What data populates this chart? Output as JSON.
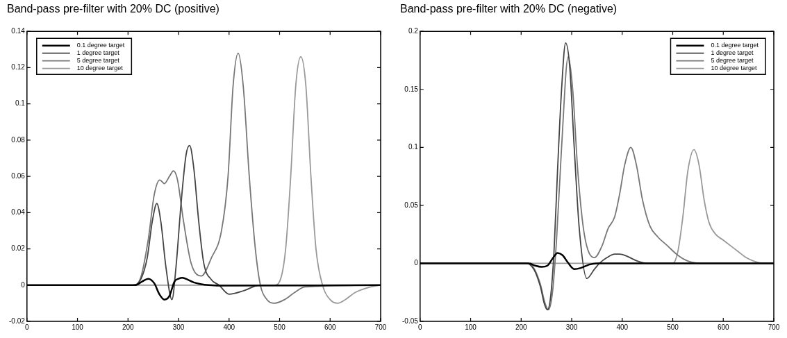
{
  "chart_data": [
    {
      "type": "line",
      "title": "Band-pass pre-filter with 20% DC (positive)",
      "xlim": [
        0,
        700
      ],
      "xticks": [
        0,
        100,
        200,
        300,
        400,
        500,
        600,
        700
      ],
      "ylim": [
        -0.02,
        0.14
      ],
      "yticks": [
        -0.02,
        0,
        0.02,
        0.04,
        0.06,
        0.08,
        0.1,
        0.12,
        0.14
      ],
      "legend": "top left",
      "grid": false,
      "marker": "none",
      "series": [
        {
          "name": "0.1 degree target",
          "color": "#000000",
          "x": [
            0,
            200,
            215,
            228,
            240,
            252,
            262,
            272,
            282,
            292,
            300,
            308,
            318,
            330,
            345,
            360,
            380,
            700
          ],
          "values": [
            0,
            0,
            0,
            0.002,
            0.0035,
            0.001,
            -0.005,
            -0.008,
            -0.006,
            0.002,
            0.0035,
            0.004,
            0.003,
            0.0015,
            0.0005,
            0,
            -0.0003,
            0
          ]
        },
        {
          "name": "1 degree target",
          "color": "#444444",
          "x": [
            0,
            210,
            225,
            238,
            248,
            257,
            265,
            275,
            287,
            295,
            305,
            315,
            322,
            330,
            340,
            350,
            365,
            380,
            400,
            430,
            460,
            700
          ],
          "values": [
            0,
            0,
            0.003,
            0.015,
            0.035,
            0.045,
            0.035,
            0.01,
            -0.008,
            0.01,
            0.045,
            0.072,
            0.077,
            0.065,
            0.035,
            0.012,
            0.003,
            0,
            -0.005,
            -0.003,
            0,
            0
          ]
        },
        {
          "name": "5 degree target",
          "color": "#777777",
          "x": [
            0,
            210,
            225,
            240,
            252,
            263,
            272,
            282,
            290,
            298,
            310,
            325,
            345,
            365,
            385,
            398,
            408,
            418,
            428,
            440,
            452,
            462,
            475,
            490,
            510,
            530,
            550,
            700
          ],
          "values": [
            0,
            0,
            0.004,
            0.025,
            0.05,
            0.058,
            0.056,
            0.06,
            0.063,
            0.058,
            0.035,
            0.012,
            0.005,
            0.015,
            0.03,
            0.06,
            0.11,
            0.128,
            0.11,
            0.06,
            0.02,
            0,
            -0.008,
            -0.01,
            -0.008,
            -0.004,
            -0.001,
            0
          ]
        },
        {
          "name": "10 degree target",
          "color": "#999999",
          "x": [
            0,
            490,
            500,
            512,
            522,
            532,
            542,
            552,
            562,
            572,
            585,
            600,
            615,
            630,
            650,
            680,
            700
          ],
          "values": [
            0,
            0,
            0.002,
            0.02,
            0.06,
            0.11,
            0.126,
            0.11,
            0.06,
            0.02,
            0,
            -0.008,
            -0.01,
            -0.008,
            -0.004,
            -0.001,
            0
          ]
        }
      ]
    },
    {
      "type": "line",
      "title": "Band-pass pre-filter with 20% DC (negative)",
      "xlim": [
        0,
        700
      ],
      "xticks": [
        0,
        100,
        200,
        300,
        400,
        500,
        600,
        700
      ],
      "ylim": [
        -0.05,
        0.2
      ],
      "yticks": [
        -0.05,
        0,
        0.05,
        0.1,
        0.15,
        0.2
      ],
      "legend": "top right",
      "grid": false,
      "marker": "none",
      "series": [
        {
          "name": "0.1 degree target",
          "color": "#000000",
          "x": [
            0,
            215,
            228,
            240,
            252,
            262,
            272,
            282,
            292,
            305,
            318,
            335,
            350,
            700
          ],
          "values": [
            0,
            0,
            -0.002,
            -0.003,
            -0.002,
            0.004,
            0.009,
            0.007,
            0.001,
            -0.005,
            -0.004,
            -0.001,
            0,
            0
          ]
        },
        {
          "name": "1 degree target",
          "color": "#444444",
          "x": [
            0,
            210,
            225,
            238,
            246,
            252,
            258,
            265,
            272,
            280,
            288,
            296,
            305,
            315,
            330,
            345,
            355,
            370,
            385,
            395,
            410,
            430,
            450,
            700
          ],
          "values": [
            0,
            0,
            -0.005,
            -0.02,
            -0.035,
            -0.04,
            -0.03,
            0.01,
            0.08,
            0.15,
            0.19,
            0.17,
            0.1,
            0.03,
            -0.013,
            -0.005,
            0,
            0.005,
            0.008,
            0.008,
            0.006,
            0.002,
            0,
            0
          ]
        },
        {
          "name": "5 degree target",
          "color": "#777777",
          "x": [
            0,
            210,
            225,
            238,
            247,
            254,
            262,
            270,
            280,
            293,
            302,
            312,
            325,
            345,
            360,
            372,
            385,
            395,
            405,
            417,
            428,
            440,
            455,
            470,
            490,
            510,
            530,
            560,
            700
          ],
          "values": [
            0,
            0,
            -0.004,
            -0.018,
            -0.034,
            -0.04,
            -0.025,
            0.02,
            0.1,
            0.178,
            0.15,
            0.08,
            0.025,
            0.005,
            0.015,
            0.03,
            0.04,
            0.06,
            0.085,
            0.1,
            0.085,
            0.055,
            0.032,
            0.023,
            0.015,
            0.007,
            0.002,
            0,
            0
          ]
        },
        {
          "name": "10 degree target",
          "color": "#999999",
          "x": [
            0,
            500,
            510,
            520,
            530,
            542,
            552,
            562,
            572,
            585,
            600,
            615,
            630,
            645,
            660,
            680,
            700
          ],
          "values": [
            0,
            0,
            0.01,
            0.04,
            0.08,
            0.098,
            0.085,
            0.055,
            0.035,
            0.025,
            0.02,
            0.015,
            0.01,
            0.005,
            0.002,
            0,
            0
          ]
        }
      ]
    }
  ]
}
